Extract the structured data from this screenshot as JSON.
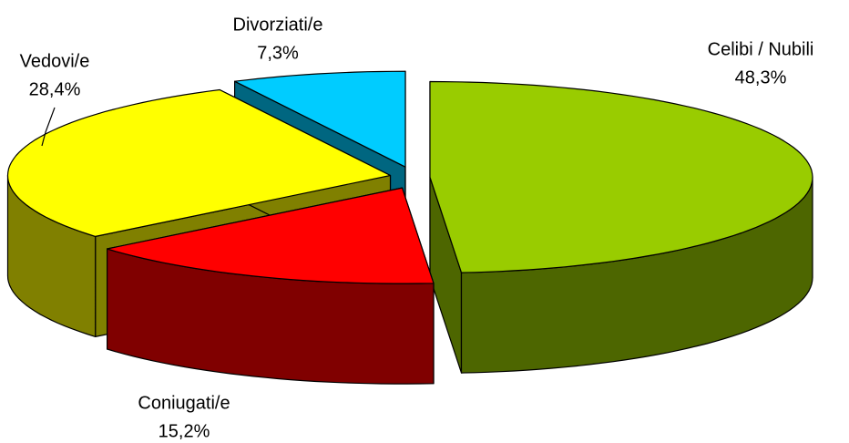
{
  "chart_data": {
    "type": "pie3d",
    "categories": [
      "Celibi / Nubili",
      "Coniugati/e",
      "Vedovi/e",
      "Divorziati/e"
    ],
    "values": [
      48.3,
      15.2,
      28.4,
      7.3
    ],
    "value_labels": [
      "48,3%",
      "15,2%",
      "28,4%",
      "7,3%"
    ],
    "colors": [
      "#99cc00",
      "#ff0000",
      "#ffff00",
      "#00ccff"
    ],
    "side_colors": [
      "#4d6600",
      "#800000",
      "#808000",
      "#006680"
    ]
  }
}
